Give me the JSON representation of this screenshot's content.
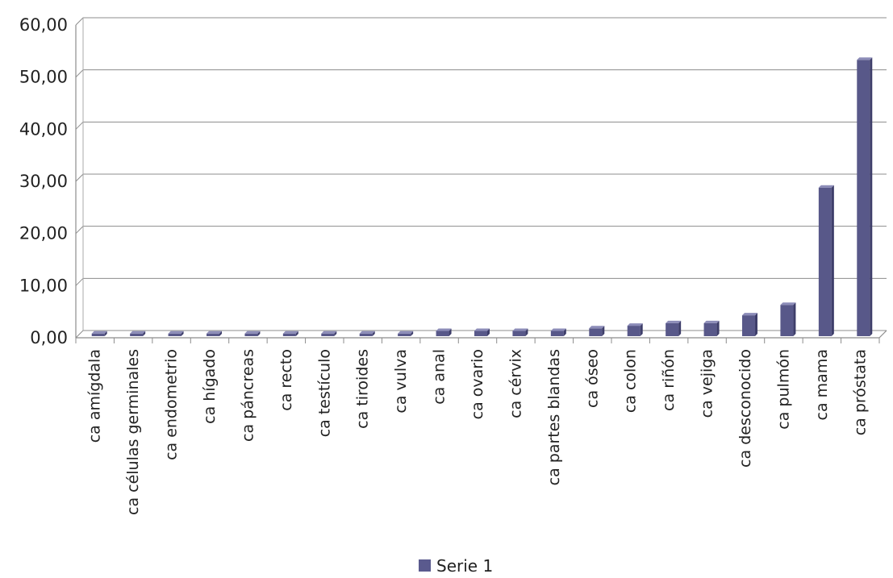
{
  "chart_data": {
    "type": "bar",
    "categories": [
      "ca amígdala",
      "ca células germinales",
      "ca endometrio",
      "ca hígado",
      "ca páncreas",
      "ca recto",
      "ca testículo",
      "ca tiroides",
      "ca vulva",
      "ca anal",
      "ca ovario",
      "ca cérvix",
      "ca partes blandas",
      "ca óseo",
      "ca colon",
      "ca riñón",
      "ca vejiga",
      "ca desconocido",
      "ca pulmón",
      "ca mama",
      "ca próstata"
    ],
    "series": [
      {
        "name": "Serie 1",
        "values": [
          0.5,
          0.5,
          0.5,
          0.5,
          0.5,
          0.5,
          0.5,
          0.5,
          0.5,
          1.0,
          1.0,
          1.0,
          1.0,
          1.5,
          2.0,
          2.5,
          2.5,
          4.0,
          6.0,
          28.5,
          53.0
        ],
        "color": "#5a5a8e"
      }
    ],
    "title": "",
    "xlabel": "",
    "ylabel": "",
    "ylim": [
      0,
      60
    ],
    "yticks": [
      "0,00",
      "10,00",
      "20,00",
      "30,00",
      "40,00",
      "50,00",
      "60,00"
    ],
    "grid": true,
    "legend_position": "bottom"
  }
}
